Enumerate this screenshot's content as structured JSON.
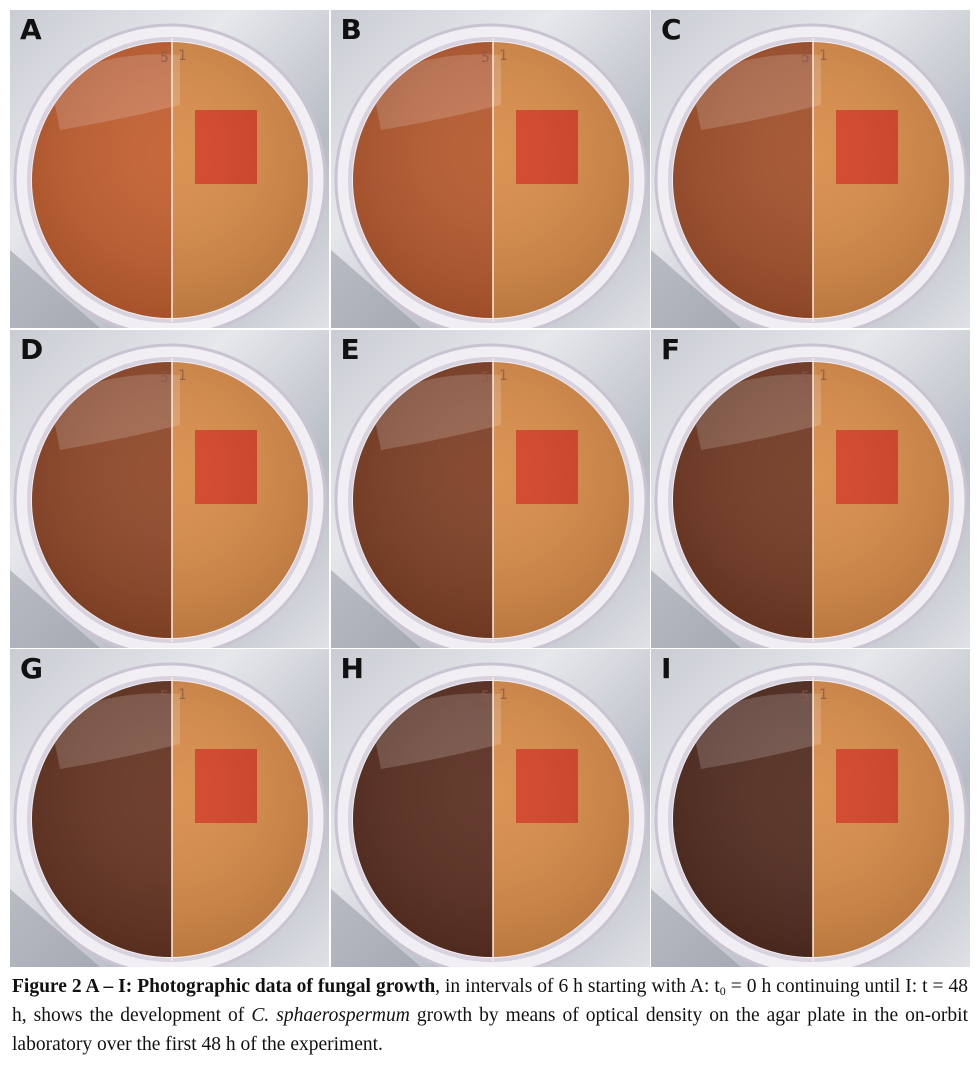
{
  "figure": {
    "panels": [
      {
        "label": "A",
        "growth": 0.05
      },
      {
        "label": "B",
        "growth": 0.15
      },
      {
        "label": "C",
        "growth": 0.3
      },
      {
        "label": "D",
        "growth": 0.45
      },
      {
        "label": "E",
        "growth": 0.58
      },
      {
        "label": "F",
        "growth": 0.68
      },
      {
        "label": "G",
        "growth": 0.78
      },
      {
        "label": "H",
        "growth": 0.86
      },
      {
        "label": "I",
        "growth": 0.92
      }
    ],
    "plate_marks": {
      "left": "5",
      "right": "1"
    }
  },
  "caption": {
    "bold": "Figure 2 A – I: Photographic data of fungal growth",
    "text1": ", in intervals of 6 h starting with A: t",
    "sub": "0",
    "text2": " = 0 h continuing until I: t = 48 h, shows the development of ",
    "species": "C. sphaerospermum",
    "text3": " growth by means of optical density on the agar plate in the on-orbit laboratory over the first 48 h of the experiment."
  }
}
